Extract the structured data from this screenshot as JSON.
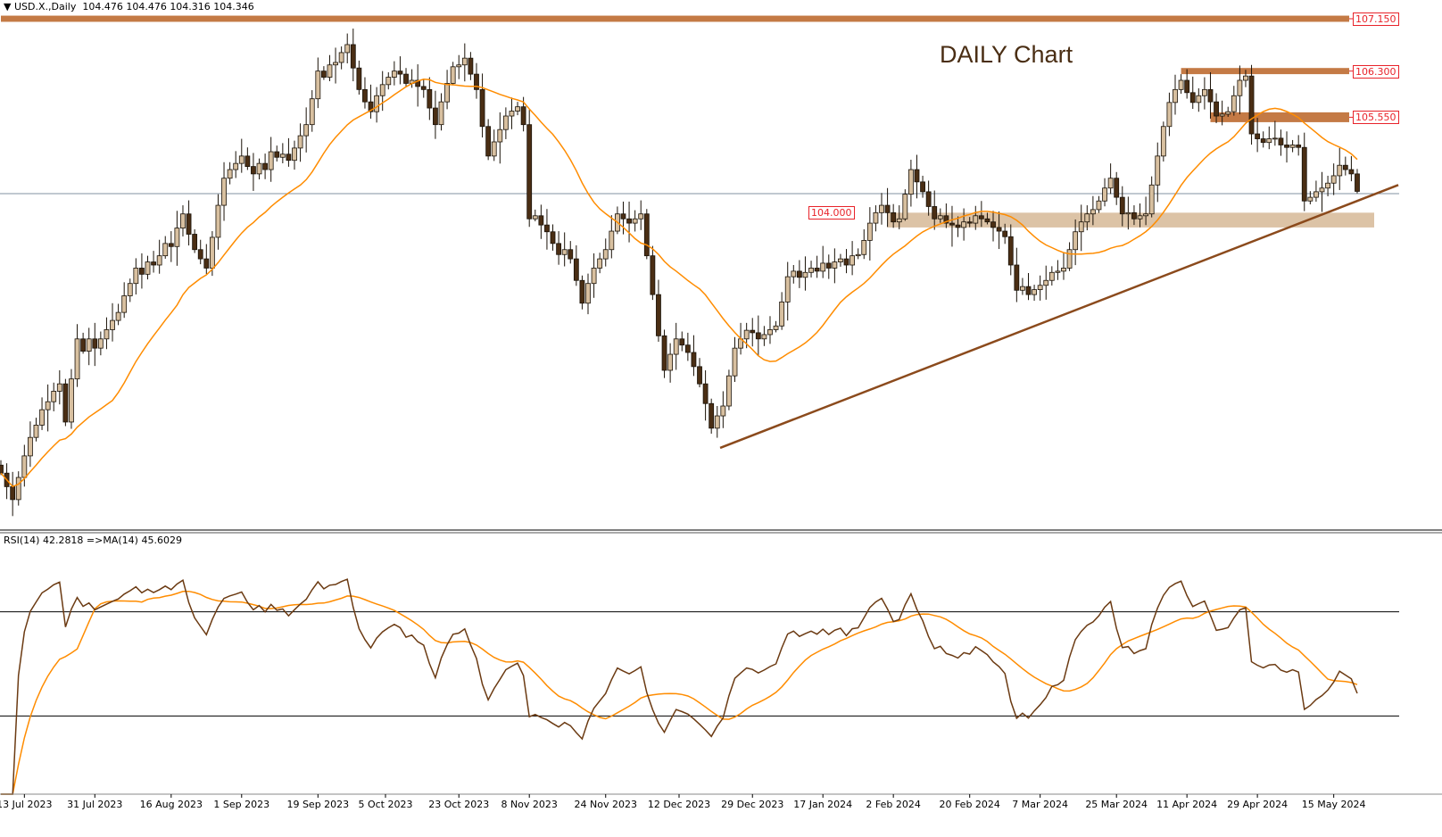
{
  "header": {
    "symbol_text": "USD.X.,Daily",
    "ohlc_text": "104.476 104.476 104.316 104.346"
  },
  "rsi_header": {
    "text": "RSI(14) 42.2818  =>MA(14) 45.6029"
  },
  "annotation_title": "DAILY Chart",
  "colors": {
    "bull_fill": "#d8c0a0",
    "bear_fill": "#4a2e14",
    "candle_outline": "#1a1208",
    "ma_line": "#ff8c00",
    "level_band": "#c47a45",
    "zone": "#dcc3a6",
    "trendline": "#8b4a1c",
    "price_label": "#e8232a",
    "rsi_line": "#6b3a12",
    "current_price_line": "#8090a0"
  },
  "chart_data": {
    "type": "candlestick",
    "symbol": "USD.X.",
    "timeframe": "Daily",
    "ylim": [
      98.9,
      107.4
    ],
    "first_open": 99.9,
    "closes": [
      99.77,
      99.55,
      99.34,
      99.7,
      100.05,
      100.35,
      100.55,
      100.8,
      100.93,
      101.1,
      101.22,
      100.6,
      101.3,
      101.95,
      101.75,
      101.95,
      101.8,
      101.95,
      102.1,
      102.25,
      102.38,
      102.65,
      102.85,
      103.1,
      103.0,
      103.2,
      103.15,
      103.3,
      103.5,
      103.45,
      103.75,
      103.98,
      103.65,
      103.4,
      103.25,
      103.1,
      103.6,
      104.12,
      104.56,
      104.7,
      104.8,
      104.92,
      104.75,
      104.63,
      104.8,
      104.7,
      104.99,
      104.9,
      104.95,
      104.85,
      105.05,
      105.25,
      105.43,
      105.85,
      106.3,
      106.2,
      106.4,
      106.44,
      106.6,
      106.73,
      106.35,
      106.0,
      105.8,
      105.64,
      105.9,
      106.08,
      106.2,
      106.3,
      106.25,
      106.1,
      106.15,
      106.05,
      106.0,
      105.7,
      105.43,
      105.8,
      106.1,
      106.37,
      106.4,
      106.51,
      106.25,
      106.0,
      105.4,
      104.92,
      105.15,
      105.35,
      105.57,
      105.65,
      105.72,
      105.43,
      103.9,
      103.95,
      103.8,
      103.69,
      103.5,
      103.32,
      103.4,
      103.25,
      102.9,
      102.53,
      102.85,
      103.1,
      103.25,
      103.4,
      103.7,
      103.98,
      103.9,
      103.83,
      103.9,
      103.98,
      103.3,
      102.67,
      102.0,
      101.44,
      101.7,
      101.95,
      101.85,
      101.73,
      101.5,
      101.22,
      100.9,
      100.5,
      100.7,
      100.86,
      101.35,
      101.8,
      101.95,
      102.09,
      102.05,
      101.95,
      102.02,
      102.1,
      102.16,
      102.55,
      102.96,
      103.05,
      102.95,
      103.03,
      103.1,
      103.05,
      103.18,
      103.1,
      103.2,
      103.25,
      103.15,
      103.3,
      103.32,
      103.55,
      103.83,
      104.0,
      104.12,
      104.0,
      103.85,
      103.9,
      104.3,
      104.7,
      104.5,
      104.34,
      104.1,
      103.9,
      103.95,
      103.83,
      103.8,
      103.76,
      103.85,
      103.83,
      103.95,
      103.9,
      103.85,
      103.76,
      103.7,
      103.61,
      103.15,
      102.74,
      102.8,
      102.67,
      102.75,
      102.82,
      102.9,
      103.03,
      103.05,
      103.1,
      103.4,
      103.69,
      103.85,
      103.98,
      104.05,
      104.19,
      104.4,
      104.56,
      104.25,
      103.98,
      104.0,
      103.9,
      103.95,
      103.98,
      104.45,
      104.92,
      105.4,
      105.79,
      106.0,
      106.15,
      105.95,
      105.79,
      105.9,
      106.0,
      105.8,
      105.57,
      105.6,
      105.64,
      105.9,
      106.15,
      106.22,
      105.28,
      105.2,
      105.14,
      105.2,
      105.21,
      105.1,
      105.06,
      105.1,
      105.06,
      104.19,
      104.25,
      104.34,
      104.4,
      104.48,
      104.6,
      104.77,
      104.7,
      104.63,
      104.346
    ],
    "x_ticks": [
      {
        "bar": 4,
        "label": "13 Jul 2023"
      },
      {
        "bar": 16,
        "label": "31 Jul 2023"
      },
      {
        "bar": 29,
        "label": "16 Aug 2023"
      },
      {
        "bar": 41,
        "label": "1 Sep 2023"
      },
      {
        "bar": 54,
        "label": "19 Sep 2023"
      },
      {
        "bar": 65.5,
        "label": "5 Oct 2023"
      },
      {
        "bar": 78,
        "label": "23 Oct 2023"
      },
      {
        "bar": 90,
        "label": "8 Nov 2023"
      },
      {
        "bar": 103,
        "label": "24 Nov 2023"
      },
      {
        "bar": 115.5,
        "label": "12 Dec 2023"
      },
      {
        "bar": 128,
        "label": "29 Dec 2023"
      },
      {
        "bar": 140,
        "label": "17 Jan 2024"
      },
      {
        "bar": 152,
        "label": "2 Feb 2024"
      },
      {
        "bar": 165,
        "label": "20 Feb 2024"
      },
      {
        "bar": 177,
        "label": "7 Mar 2024"
      },
      {
        "bar": 190,
        "label": "25 Mar 2024"
      },
      {
        "bar": 202,
        "label": "11 Apr 2024"
      },
      {
        "bar": 214,
        "label": "29 Apr 2024"
      },
      {
        "bar": 227,
        "label": "15 May 2024"
      }
    ],
    "levels": [
      {
        "price": 107.15,
        "label": "107.150",
        "from_bar": 0,
        "thickness": 0.1
      },
      {
        "price": 106.3,
        "label": "106.300",
        "from_bar": 201,
        "thickness": 0.1
      },
      {
        "price": 105.55,
        "label": "105.550",
        "from_bar": 206,
        "thickness": 0.16
      }
    ],
    "zone": {
      "top": 104.0,
      "bottom": 103.76,
      "from_bar": 151,
      "label": "104.000"
    },
    "current_price_line": 104.31,
    "trendline": {
      "from": {
        "bar": 122.5,
        "price": 100.18
      },
      "to": {
        "bar": 238,
        "price": 104.45
      }
    },
    "moving_average": {
      "type": "SMA",
      "period": 20
    },
    "rsi": {
      "period": 14,
      "ma_period": 14,
      "levels": [
        70,
        30
      ],
      "ylim": [
        0,
        100
      ],
      "value": 42.2818,
      "ma_value": 45.6029
    }
  }
}
